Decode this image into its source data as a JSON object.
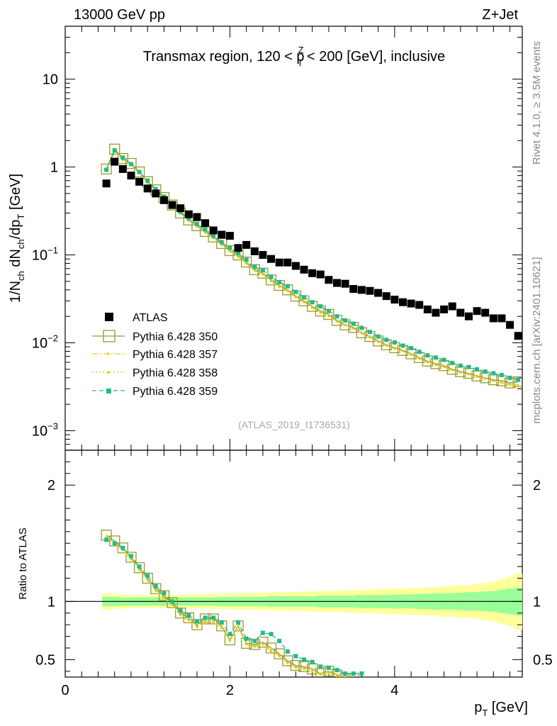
{
  "header": {
    "left": "13000 GeV pp",
    "right": "Z+Jet"
  },
  "chart_data": [
    {
      "type": "scatter",
      "panel": "main",
      "title": "Transmax region, 120 < pTZ < 200 [GeV], inclusive",
      "title_parts": {
        "pre": "Transmax region, 120 < p",
        "sup": "Z",
        "sub": "T",
        "post": " < 200 [GeV], inclusive"
      },
      "ylabel": "1/N_ch dN_ch/dp_T [GeV]",
      "ylabel_parts": {
        "a": "1/N",
        "a_sub": "ch",
        "b": " dN",
        "b_sub": "ch",
        "c": "/dp",
        "c_sub": "T",
        "d": " [GeV]"
      },
      "yscale": "log",
      "ylim": [
        0.0006,
        40
      ],
      "xlim": [
        0,
        5.55
      ],
      "y_ticks": [
        {
          "value": 10,
          "label": "10"
        },
        {
          "value": 1,
          "label": "1"
        },
        {
          "value": 0.1,
          "base": "10",
          "exp": "−1"
        },
        {
          "value": 0.01,
          "base": "10",
          "exp": "−2"
        },
        {
          "value": 0.001,
          "base": "10",
          "exp": "−3"
        }
      ],
      "watermark": "(ATLAS_2019_I1736531)",
      "x": [
        0.5,
        0.6,
        0.7,
        0.8,
        0.9,
        1.0,
        1.1,
        1.2,
        1.3,
        1.4,
        1.5,
        1.6,
        1.7,
        1.8,
        1.9,
        2.0,
        2.1,
        2.2,
        2.3,
        2.4,
        2.5,
        2.6,
        2.7,
        2.8,
        2.9,
        3.0,
        3.1,
        3.2,
        3.3,
        3.4,
        3.5,
        3.6,
        3.7,
        3.8,
        3.9,
        4.0,
        4.1,
        4.2,
        4.3,
        4.4,
        4.5,
        4.6,
        4.7,
        4.8,
        4.9,
        5.0,
        5.1,
        5.2,
        5.3,
        5.4,
        5.5
      ],
      "series": [
        {
          "name": "ATLAS",
          "marker": "filled-square",
          "color": "#000000",
          "values": [
            0.65,
            1.15,
            0.95,
            0.8,
            0.68,
            0.57,
            0.5,
            0.42,
            0.37,
            0.34,
            0.29,
            0.27,
            0.23,
            0.19,
            0.17,
            0.165,
            0.12,
            0.13,
            0.11,
            0.1,
            0.09,
            0.082,
            0.082,
            0.075,
            0.068,
            0.062,
            0.06,
            0.052,
            0.048,
            0.047,
            0.041,
            0.04,
            0.039,
            0.037,
            0.034,
            0.031,
            0.029,
            0.028,
            0.027,
            0.024,
            0.022,
            0.024,
            0.026,
            0.022,
            0.02,
            0.023,
            0.022,
            0.019,
            0.019,
            0.016,
            0.012
          ]
        },
        {
          "name": "Pythia 6.428 350",
          "marker": "open-square",
          "color": "#999933",
          "values": [
            0.95,
            1.6,
            1.25,
            1.1,
            0.88,
            0.68,
            0.55,
            0.45,
            0.37,
            0.3,
            0.25,
            0.215,
            0.185,
            0.16,
            0.135,
            0.112,
            0.1,
            0.083,
            0.068,
            0.062,
            0.052,
            0.045,
            0.04,
            0.034,
            0.03,
            0.026,
            0.023,
            0.021,
            0.018,
            0.016,
            0.015,
            0.013,
            0.0118,
            0.0105,
            0.0095,
            0.0088,
            0.0082,
            0.0075,
            0.0068,
            0.0062,
            0.0058,
            0.0055,
            0.005,
            0.0047,
            0.0045,
            0.0042,
            0.004,
            0.0038,
            0.0037,
            0.0035,
            0.0036
          ]
        },
        {
          "name": "Pythia 6.428 357",
          "marker": "dash-dot",
          "color": "#eecc22",
          "values": [
            0.92,
            1.5,
            1.2,
            1.05,
            0.85,
            0.66,
            0.53,
            0.44,
            0.36,
            0.295,
            0.245,
            0.21,
            0.18,
            0.155,
            0.13,
            0.11,
            0.095,
            0.08,
            0.066,
            0.06,
            0.05,
            0.043,
            0.039,
            0.033,
            0.029,
            0.025,
            0.022,
            0.02,
            0.0175,
            0.0158,
            0.0145,
            0.0128,
            0.0115,
            0.0102,
            0.0093,
            0.0086,
            0.008,
            0.0073,
            0.0066,
            0.006,
            0.0056,
            0.0053,
            0.0049,
            0.0046,
            0.0044,
            0.0041,
            0.0039,
            0.0037,
            0.0035,
            0.0033,
            0.0032
          ]
        },
        {
          "name": "Pythia 6.428 358",
          "marker": "dotted",
          "color": "#cccc11",
          "values": [
            0.93,
            1.52,
            1.22,
            1.06,
            0.86,
            0.67,
            0.54,
            0.445,
            0.365,
            0.298,
            0.247,
            0.212,
            0.182,
            0.157,
            0.132,
            0.111,
            0.097,
            0.081,
            0.067,
            0.061,
            0.051,
            0.044,
            0.0395,
            0.0335,
            0.0295,
            0.0255,
            0.0225,
            0.0205,
            0.0178,
            0.016,
            0.0147,
            0.013,
            0.0117,
            0.0104,
            0.0094,
            0.0087,
            0.0081,
            0.0074,
            0.0067,
            0.0061,
            0.0057,
            0.0054,
            0.0049,
            0.0046,
            0.0044,
            0.0042,
            0.0039,
            0.0037,
            0.0036,
            0.0034,
            0.0033
          ]
        },
        {
          "name": "Pythia 6.428 359",
          "marker": "dashed-filled-square",
          "color": "#22bb88",
          "values": [
            0.93,
            1.55,
            1.28,
            1.08,
            0.88,
            0.7,
            0.56,
            0.46,
            0.38,
            0.31,
            0.26,
            0.225,
            0.195,
            0.165,
            0.14,
            0.12,
            0.105,
            0.088,
            0.073,
            0.067,
            0.056,
            0.049,
            0.044,
            0.038,
            0.033,
            0.029,
            0.026,
            0.023,
            0.02,
            0.018,
            0.0165,
            0.0148,
            0.0133,
            0.0118,
            0.0108,
            0.0101,
            0.0093,
            0.0087,
            0.0079,
            0.0072,
            0.0068,
            0.0064,
            0.0059,
            0.0055,
            0.0053,
            0.005,
            0.0047,
            0.0045,
            0.0043,
            0.004,
            0.0038
          ]
        }
      ],
      "legend": {
        "position": "lower-left"
      }
    },
    {
      "type": "line",
      "panel": "ratio",
      "ylabel": "Ratio to ATLAS",
      "xlabel": "p_T [GeV]",
      "xlabel_parts": {
        "a": "p",
        "sub": "T",
        "b": " [GeV]"
      },
      "ylim": [
        0.35,
        2.3
      ],
      "xlim": [
        0,
        5.55
      ],
      "y_ticks": [
        {
          "value": 0.5,
          "label": "0.5"
        },
        {
          "value": 1,
          "label": "1"
        },
        {
          "value": 2,
          "label": "2"
        }
      ],
      "x_ticks": [
        {
          "value": 0,
          "label": "0"
        },
        {
          "value": 2,
          "label": "2"
        },
        {
          "value": 4,
          "label": "4"
        }
      ],
      "band_inner_halfwidth": [
        0.04,
        0.04,
        0.035,
        0.035,
        0.035,
        0.035,
        0.035,
        0.035,
        0.035,
        0.035,
        0.035,
        0.035,
        0.035,
        0.035,
        0.04,
        0.04,
        0.04,
        0.04,
        0.04,
        0.04,
        0.045,
        0.045,
        0.045,
        0.045,
        0.045,
        0.045,
        0.05,
        0.05,
        0.05,
        0.05,
        0.05,
        0.055,
        0.055,
        0.055,
        0.055,
        0.06,
        0.06,
        0.06,
        0.065,
        0.065,
        0.07,
        0.07,
        0.07,
        0.075,
        0.08,
        0.08,
        0.085,
        0.09,
        0.1,
        0.11,
        0.12
      ],
      "band_outer_halfwidth": [
        0.07,
        0.065,
        0.06,
        0.055,
        0.055,
        0.055,
        0.055,
        0.055,
        0.055,
        0.055,
        0.06,
        0.06,
        0.06,
        0.065,
        0.065,
        0.065,
        0.07,
        0.07,
        0.07,
        0.075,
        0.075,
        0.08,
        0.08,
        0.08,
        0.085,
        0.085,
        0.09,
        0.09,
        0.09,
        0.095,
        0.095,
        0.1,
        0.1,
        0.105,
        0.105,
        0.11,
        0.11,
        0.115,
        0.115,
        0.12,
        0.12,
        0.13,
        0.13,
        0.14,
        0.14,
        0.15,
        0.16,
        0.17,
        0.19,
        0.21,
        0.24
      ],
      "x": [
        0.5,
        0.6,
        0.7,
        0.8,
        0.9,
        1.0,
        1.1,
        1.2,
        1.3,
        1.4,
        1.5,
        1.6,
        1.7,
        1.8,
        1.9,
        2.0,
        2.1,
        2.2,
        2.3,
        2.4,
        2.5,
        2.6,
        2.7,
        2.8,
        2.9,
        3.0,
        3.1,
        3.2,
        3.3,
        3.4,
        3.5,
        3.6
      ],
      "series": [
        {
          "name": "Pythia 6.428 350",
          "marker": "open-square",
          "color": "#999933",
          "values": [
            1.57,
            1.52,
            1.46,
            1.38,
            1.29,
            1.2,
            1.11,
            1.05,
            0.99,
            0.9,
            0.86,
            0.8,
            0.85,
            0.85,
            0.79,
            0.67,
            0.79,
            0.64,
            0.63,
            0.65,
            0.6,
            0.55,
            0.49,
            0.45,
            0.44,
            0.42,
            0.38,
            0.4,
            0.37,
            0.34,
            0.34,
            0.3
          ]
        },
        {
          "name": "Pythia 6.428 357",
          "marker": "dash-dot",
          "color": "#eecc22",
          "values": [
            1.54,
            1.5,
            1.44,
            1.36,
            1.27,
            1.18,
            1.09,
            1.03,
            0.97,
            0.88,
            0.84,
            0.78,
            0.82,
            0.82,
            0.77,
            0.66,
            0.78,
            0.63,
            0.61,
            0.63,
            0.57,
            0.53,
            0.47,
            0.43,
            0.42,
            0.4,
            0.37,
            0.38,
            0.36,
            0.34,
            0.33,
            0.3
          ]
        },
        {
          "name": "Pythia 6.428 358",
          "marker": "dotted",
          "color": "#cccc11",
          "values": [
            1.55,
            1.51,
            1.45,
            1.37,
            1.28,
            1.19,
            1.1,
            1.04,
            0.98,
            0.89,
            0.85,
            0.79,
            0.83,
            0.83,
            0.78,
            0.67,
            0.79,
            0.64,
            0.62,
            0.64,
            0.58,
            0.54,
            0.48,
            0.44,
            0.43,
            0.41,
            0.38,
            0.39,
            0.37,
            0.35,
            0.34,
            0.31
          ]
        },
        {
          "name": "Pythia 6.428 359",
          "marker": "dashed-filled-square",
          "color": "#22bb88",
          "values": [
            1.53,
            1.5,
            1.46,
            1.39,
            1.3,
            1.22,
            1.13,
            1.07,
            1.0,
            0.92,
            0.88,
            0.83,
            0.86,
            0.86,
            0.82,
            0.72,
            0.82,
            0.68,
            0.66,
            0.73,
            0.72,
            0.66,
            0.57,
            0.53,
            0.5,
            0.48,
            0.44,
            0.43,
            0.41,
            0.38,
            0.38,
            0.38
          ]
        }
      ]
    }
  ],
  "side_labels": {
    "rivet": "Rivet 4.1.0, ≥ 3.5M events",
    "mcplots": "mcplots.cern.ch [arXiv:2401.10621]"
  }
}
